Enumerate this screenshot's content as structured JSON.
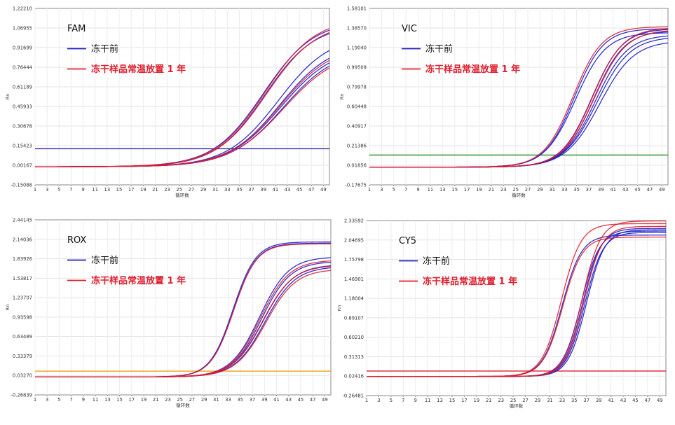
{
  "chart_data": [
    {
      "type": "line",
      "title": "FAM",
      "xlabel": "循环数",
      "ylabel": "Rn",
      "x_ticks": [
        1,
        3,
        5,
        7,
        9,
        11,
        13,
        15,
        17,
        19,
        21,
        23,
        25,
        27,
        29,
        31,
        33,
        35,
        37,
        39,
        41,
        43,
        45,
        47,
        49
      ],
      "y_tick_labels": [
        "1.22210",
        "1.06955",
        "0.91699",
        "0.76444",
        "0.61189",
        "0.45933",
        "0.30678",
        "0.15423",
        "0.00167",
        "-0.15088"
      ],
      "ylim": [
        -0.15088,
        1.2221
      ],
      "xlim": [
        1,
        50
      ],
      "legend": {
        "placement": "top-left",
        "entries": [
          {
            "label": "冻干前",
            "color": "#1c1cc8"
          },
          {
            "label": "冻干样品常温放置 1 年",
            "color": "#e01c2c"
          }
        ]
      },
      "threshold": {
        "value": 0.13,
        "color": "#2a2ab0"
      },
      "series": [
        {
          "group": "冻干前",
          "color": "#1c1cc8",
          "baseline": -0.01,
          "plateau": 1.13,
          "midpoint": 39.0,
          "slope": 4.2
        },
        {
          "group": "冻干前",
          "color": "#1c1cc8",
          "baseline": -0.01,
          "plateau": 1.1,
          "midpoint": 39.2,
          "slope": 4.1
        },
        {
          "group": "冻干前",
          "color": "#1c1cc8",
          "baseline": -0.01,
          "plateau": 1.02,
          "midpoint": 41.5,
          "slope": 4.3
        },
        {
          "group": "冻干前",
          "color": "#1c1cc8",
          "baseline": -0.01,
          "plateau": 0.96,
          "midpoint": 41.8,
          "slope": 4.3
        },
        {
          "group": "冻干前",
          "color": "#1c1cc8",
          "baseline": -0.01,
          "plateau": 0.93,
          "midpoint": 42.0,
          "slope": 4.4
        },
        {
          "group": "冻干前",
          "color": "#1c1cc8",
          "baseline": -0.01,
          "plateau": 0.91,
          "midpoint": 42.3,
          "slope": 4.4
        },
        {
          "group": "冻干样品常温放置 1 年",
          "color": "#e01c2c",
          "baseline": -0.01,
          "plateau": 1.15,
          "midpoint": 39.3,
          "slope": 4.2
        },
        {
          "group": "冻干样品常温放置 1 年",
          "color": "#e01c2c",
          "baseline": -0.01,
          "plateau": 1.12,
          "midpoint": 39.5,
          "slope": 4.2
        },
        {
          "group": "冻干样品常温放置 1 年",
          "color": "#e01c2c",
          "baseline": -0.01,
          "plateau": 0.95,
          "midpoint": 41.9,
          "slope": 4.4
        },
        {
          "group": "冻干样品常温放置 1 年",
          "color": "#e01c2c",
          "baseline": -0.01,
          "plateau": 0.9,
          "midpoint": 42.4,
          "slope": 4.5
        }
      ]
    },
    {
      "type": "line",
      "title": "VIC",
      "xlabel": "循环数",
      "ylabel": "Rn",
      "x_ticks": [
        1,
        3,
        5,
        7,
        9,
        11,
        13,
        15,
        17,
        19,
        21,
        23,
        25,
        27,
        29,
        31,
        33,
        35,
        37,
        39,
        41,
        43,
        45,
        47,
        49
      ],
      "y_tick_labels": [
        "1.58101",
        "1.38570",
        "1.19040",
        "0.99509",
        "0.79978",
        "0.60448",
        "0.40917",
        "0.21386",
        "0.01856",
        "-0.17675"
      ],
      "ylim": [
        -0.17675,
        1.58101
      ],
      "xlim": [
        1,
        50
      ],
      "legend": {
        "placement": "top-left",
        "entries": [
          {
            "label": "冻干前",
            "color": "#1c1cc8"
          },
          {
            "label": "冻干样品常温放置 1 年",
            "color": "#e01c2c"
          }
        ]
      },
      "threshold": {
        "value": 0.12,
        "color": "#1a8a1a"
      },
      "series": [
        {
          "group": "冻干前",
          "color": "#1c1cc8",
          "baseline": 0.0,
          "plateau": 1.38,
          "midpoint": 34.6,
          "slope": 2.4
        },
        {
          "group": "冻干前",
          "color": "#1c1cc8",
          "baseline": 0.0,
          "plateau": 1.34,
          "midpoint": 34.8,
          "slope": 2.5
        },
        {
          "group": "冻干前",
          "color": "#1c1cc8",
          "baseline": 0.0,
          "plateau": 1.38,
          "midpoint": 37.5,
          "slope": 2.5
        },
        {
          "group": "冻干前",
          "color": "#1c1cc8",
          "baseline": 0.0,
          "plateau": 1.36,
          "midpoint": 37.8,
          "slope": 2.5
        },
        {
          "group": "冻干前",
          "color": "#1c1cc8",
          "baseline": 0.0,
          "plateau": 1.32,
          "midpoint": 38.1,
          "slope": 2.6
        },
        {
          "group": "冻干前",
          "color": "#1c1cc8",
          "baseline": 0.0,
          "plateau": 1.3,
          "midpoint": 38.4,
          "slope": 2.7
        },
        {
          "group": "冻干前",
          "color": "#1c1cc8",
          "baseline": 0.0,
          "plateau": 1.26,
          "midpoint": 38.8,
          "slope": 2.8
        },
        {
          "group": "冻干样品常温放置 1 年",
          "color": "#e01c2c",
          "baseline": 0.0,
          "plateau": 1.4,
          "midpoint": 34.4,
          "slope": 2.4
        },
        {
          "group": "冻干样品常温放置 1 年",
          "color": "#e01c2c",
          "baseline": 0.0,
          "plateau": 1.39,
          "midpoint": 37.6,
          "slope": 2.5
        },
        {
          "group": "冻干样品常温放置 1 年",
          "color": "#e01c2c",
          "baseline": 0.0,
          "plateau": 1.37,
          "midpoint": 37.9,
          "slope": 2.6
        }
      ]
    },
    {
      "type": "line",
      "title": "ROX",
      "xlabel": "循环数",
      "ylabel": "Rn",
      "x_ticks": [
        1,
        3,
        5,
        7,
        9,
        11,
        13,
        15,
        17,
        19,
        21,
        23,
        25,
        27,
        29,
        31,
        33,
        35,
        37,
        39,
        41,
        43,
        45,
        47,
        49
      ],
      "y_tick_labels": [
        "2.44145",
        "2.14036",
        "1.83926",
        "1.53817",
        "1.23707",
        "0.93598",
        "0.63489",
        "0.33379",
        "0.03270",
        "-0.26839"
      ],
      "ylim": [
        -0.26839,
        2.44145
      ],
      "xlim": [
        1,
        50
      ],
      "legend": {
        "placement": "top-left",
        "entries": [
          {
            "label": "冻干前",
            "color": "#1c1cc8"
          },
          {
            "label": "冻干样品常温放置 1 年",
            "color": "#e01c2c"
          }
        ]
      },
      "threshold": {
        "value": 0.1,
        "color": "#f0a018"
      },
      "series": [
        {
          "group": "冻干前",
          "color": "#1c1cc8",
          "baseline": 0.01,
          "plateau": 2.1,
          "midpoint": 33.8,
          "slope": 1.9
        },
        {
          "group": "冻干前",
          "color": "#1c1cc8",
          "baseline": 0.01,
          "plateau": 2.08,
          "midpoint": 33.9,
          "slope": 1.9
        },
        {
          "group": "冻干前",
          "color": "#1c1cc8",
          "baseline": 0.01,
          "plateau": 1.87,
          "midpoint": 38.2,
          "slope": 2.4
        },
        {
          "group": "冻干前",
          "color": "#1c1cc8",
          "baseline": 0.01,
          "plateau": 1.8,
          "midpoint": 38.5,
          "slope": 2.4
        },
        {
          "group": "冻干前",
          "color": "#1c1cc8",
          "baseline": 0.01,
          "plateau": 1.75,
          "midpoint": 38.8,
          "slope": 2.5
        },
        {
          "group": "冻干前",
          "color": "#1c1cc8",
          "baseline": 0.01,
          "plateau": 1.72,
          "midpoint": 39.1,
          "slope": 2.5
        },
        {
          "group": "冻干样品常温放置 1 年",
          "color": "#e01c2c",
          "baseline": 0.01,
          "plateau": 2.07,
          "midpoint": 33.9,
          "slope": 1.9
        },
        {
          "group": "冻干样品常温放置 1 年",
          "color": "#e01c2c",
          "baseline": 0.01,
          "plateau": 1.82,
          "midpoint": 38.3,
          "slope": 2.4
        },
        {
          "group": "冻干样品常温放置 1 年",
          "color": "#e01c2c",
          "baseline": 0.01,
          "plateau": 1.74,
          "midpoint": 38.7,
          "slope": 2.5
        },
        {
          "group": "冻干样品常温放置 1 年",
          "color": "#e01c2c",
          "baseline": 0.01,
          "plateau": 1.68,
          "midpoint": 39.2,
          "slope": 2.5
        }
      ]
    },
    {
      "type": "line",
      "title": "CY5",
      "xlabel": "循环数",
      "ylabel": "Rn",
      "x_ticks": [
        1,
        3,
        5,
        7,
        9,
        11,
        13,
        15,
        17,
        19,
        21,
        23,
        25,
        27,
        29,
        31,
        33,
        35,
        37,
        39,
        41,
        43,
        45,
        47,
        49
      ],
      "y_tick_labels": [
        "2.33592",
        "2.04695",
        "1.75798",
        "1.46901",
        "1.18004",
        "0.89107",
        "0.60210",
        "0.31313",
        "0.02416",
        "-0.26481"
      ],
      "ylim": [
        -0.26481,
        2.33592
      ],
      "xlim": [
        1,
        50
      ],
      "legend": {
        "placement": "top-left",
        "entries": [
          {
            "label": "冻干前",
            "color": "#1c1cc8"
          },
          {
            "label": "冻干样品常温放置 1 年",
            "color": "#e01c2c"
          }
        ]
      },
      "threshold": {
        "value": 0.1,
        "color": "#e01c2c"
      },
      "series": [
        {
          "group": "冻干前",
          "color": "#1c1cc8",
          "baseline": 0.02,
          "plateau": 2.12,
          "midpoint": 33.0,
          "slope": 1.6
        },
        {
          "group": "冻干前",
          "color": "#1c1cc8",
          "baseline": 0.02,
          "plateau": 2.18,
          "midpoint": 36.1,
          "slope": 1.5
        },
        {
          "group": "冻干前",
          "color": "#1c1cc8",
          "baseline": 0.02,
          "plateau": 2.22,
          "midpoint": 36.4,
          "slope": 1.5
        },
        {
          "group": "冻干前",
          "color": "#1c1cc8",
          "baseline": 0.02,
          "plateau": 2.16,
          "midpoint": 36.7,
          "slope": 1.5
        },
        {
          "group": "冻干前",
          "color": "#1c1cc8",
          "baseline": 0.02,
          "plateau": 2.2,
          "midpoint": 37.0,
          "slope": 1.5
        },
        {
          "group": "冻干样品常温放置 1 年",
          "color": "#e01c2c",
          "baseline": 0.02,
          "plateau": 2.29,
          "midpoint": 32.9,
          "slope": 1.6
        },
        {
          "group": "冻干样品常温放置 1 年",
          "color": "#e01c2c",
          "baseline": 0.02,
          "plateau": 2.09,
          "midpoint": 33.1,
          "slope": 1.6
        },
        {
          "group": "冻干样品常温放置 1 年",
          "color": "#e01c2c",
          "baseline": 0.02,
          "plateau": 2.33,
          "midpoint": 36.3,
          "slope": 1.5
        },
        {
          "group": "冻干样品常温放置 1 年",
          "color": "#e01c2c",
          "baseline": 0.02,
          "plateau": 2.25,
          "midpoint": 36.6,
          "slope": 1.5
        }
      ]
    }
  ]
}
